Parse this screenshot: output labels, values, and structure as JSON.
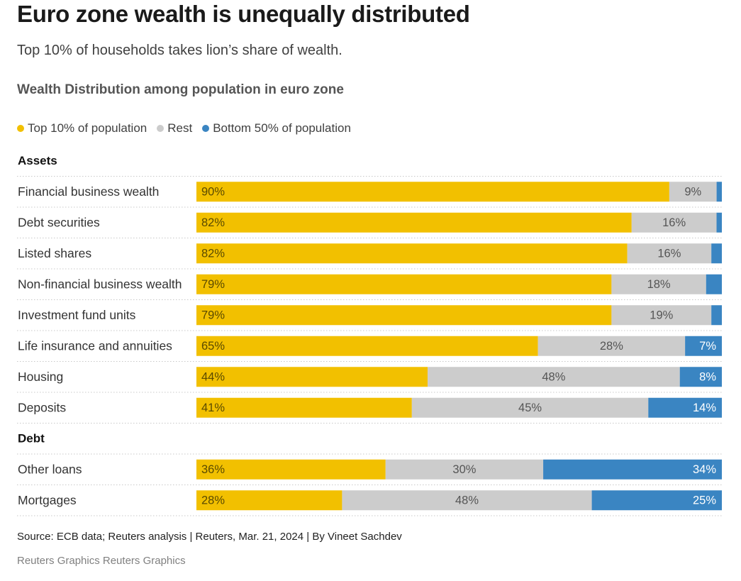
{
  "header": {
    "title": "Euro zone wealth is unequally distributed",
    "subtitle": "Top 10% of households takes lion’s share of wealth."
  },
  "legend": [
    {
      "label": "Top 10% of population",
      "color": "#f2c000"
    },
    {
      "label": "Rest",
      "color": "#cccccc"
    },
    {
      "label": "Bottom 50% of population",
      "color": "#3a85c2"
    }
  ],
  "chart_data": {
    "type": "bar",
    "orientation": "horizontal",
    "stacked": true,
    "title": "Wealth Distribution among population in euro zone",
    "xlim": [
      0,
      100
    ],
    "series_names": [
      "Top 10% of population",
      "Rest",
      "Bottom 50% of population"
    ],
    "colors": [
      "#f2c000",
      "#cccccc",
      "#3a85c2"
    ],
    "groups": [
      {
        "name": "Assets",
        "rows": [
          {
            "category": "Financial business wealth",
            "values": [
              90,
              9,
              1
            ],
            "labels": [
              "90%",
              "9%",
              ""
            ]
          },
          {
            "category": "Debt securities",
            "values": [
              82,
              16,
              1
            ],
            "labels": [
              "82%",
              "16%",
              ""
            ]
          },
          {
            "category": "Listed shares",
            "values": [
              82,
              16,
              2
            ],
            "labels": [
              "82%",
              "16%",
              ""
            ]
          },
          {
            "category": "Non-financial business wealth",
            "values": [
              79,
              18,
              3
            ],
            "labels": [
              "79%",
              "18%",
              ""
            ]
          },
          {
            "category": "Investment fund units",
            "values": [
              79,
              19,
              2
            ],
            "labels": [
              "79%",
              "19%",
              ""
            ]
          },
          {
            "category": "Life insurance and annuities",
            "values": [
              65,
              28,
              7
            ],
            "labels": [
              "65%",
              "28%",
              "7%"
            ]
          },
          {
            "category": "Housing",
            "values": [
              44,
              48,
              8
            ],
            "labels": [
              "44%",
              "48%",
              "8%"
            ]
          },
          {
            "category": "Deposits",
            "values": [
              41,
              45,
              14
            ],
            "labels": [
              "41%",
              "45%",
              "14%"
            ]
          }
        ]
      },
      {
        "name": "Debt",
        "rows": [
          {
            "category": "Other loans",
            "values": [
              36,
              30,
              34
            ],
            "labels": [
              "36%",
              "30%",
              "34%"
            ]
          },
          {
            "category": "Mortgages",
            "values": [
              28,
              48,
              25
            ],
            "labels": [
              "28%",
              "48%",
              "25%"
            ]
          }
        ]
      }
    ]
  },
  "footer": {
    "source": "Source: ECB data; Reuters analysis | Reuters, Mar. 21, 2024 | By Vineet Sachdev",
    "brand": "Reuters Graphics Reuters Graphics"
  }
}
